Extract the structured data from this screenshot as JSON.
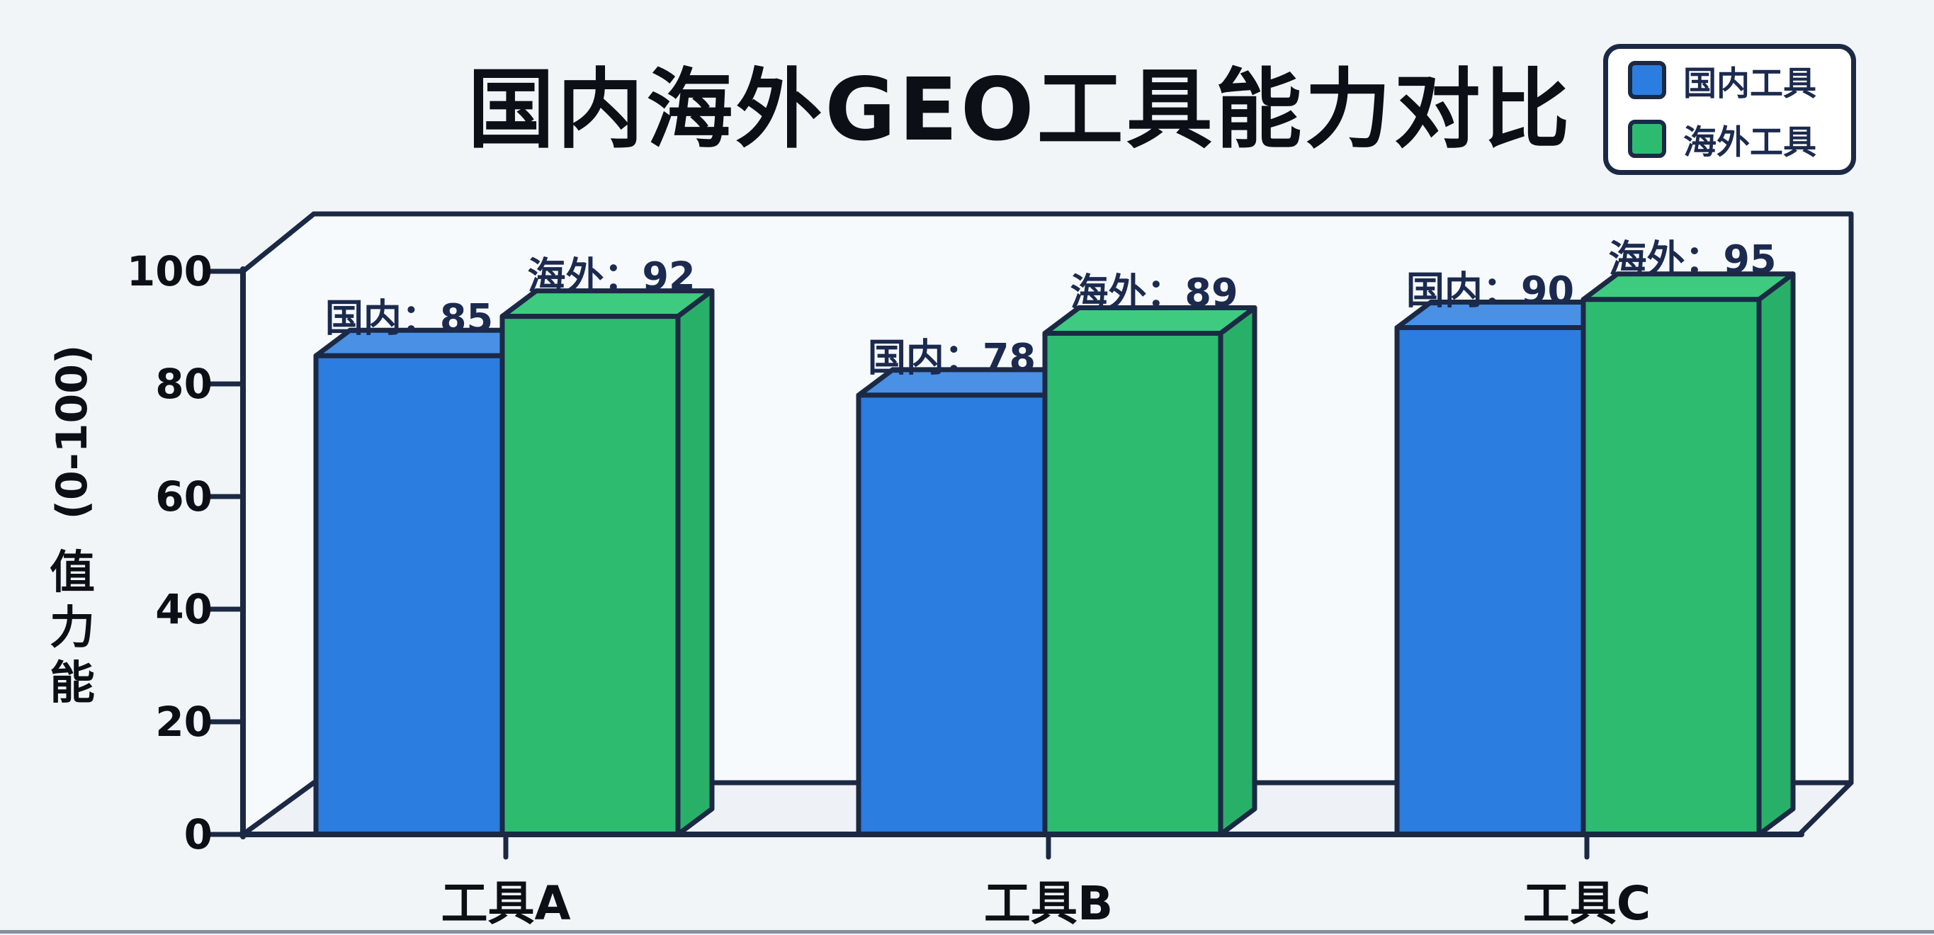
{
  "chart_data": {
    "type": "bar",
    "style": "3d-hand-drawn-grouped-bars",
    "title": "国内海外GEO工具能力对比",
    "categories": [
      "工具A",
      "工具B",
      "工具C"
    ],
    "series": [
      {
        "name": "国内工具",
        "values": [
          85,
          78,
          90
        ],
        "point_labels": [
          "国内：85",
          "国内：78",
          "国内：90"
        ]
      },
      {
        "name": "海外工具",
        "values": [
          92,
          89,
          95
        ],
        "point_labels": [
          "海外：92",
          "海外：89",
          "海外：95"
        ]
      }
    ],
    "legend": [
      "国内工具",
      "海外工具"
    ],
    "legend_position": "top-right",
    "ylabel": "能力值 (0-100)",
    "ylabel_rotated_text": "(0-100)",
    "ylabel_stacked_chars": [
      "值",
      "力",
      "能"
    ],
    "yticks": [
      0,
      20,
      40,
      60,
      80,
      100
    ],
    "ylim": [
      0,
      100
    ],
    "grid": false
  },
  "colors": {
    "outline": "#1b2944",
    "bar_blue": "#2b7de0",
    "bar_blue_top": "#4a90e4",
    "bar_green": "#2dbb70",
    "bar_green_top": "#3ecb80",
    "bar_green_side": "#29b068",
    "label_navy": "#1b2a4e",
    "text_dark": "#0c0f15",
    "page_bg": "#f1f5f8",
    "plot_bg": "#f7fafc",
    "floor_bg": "#eef2f6",
    "legend_bg": "#ffffff",
    "bottom_rule": "rgba(27,41,68,0.5)"
  }
}
